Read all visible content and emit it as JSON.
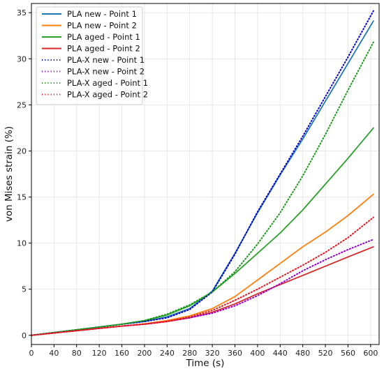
{
  "chart_data": {
    "type": "line",
    "title": "",
    "xlabel": "Time (s)",
    "ylabel": "von Mises strain (%)",
    "xlim": [
      0,
      615
    ],
    "ylim": [
      -1,
      36
    ],
    "xticks": [
      0,
      40,
      80,
      120,
      160,
      200,
      240,
      280,
      320,
      360,
      400,
      440,
      480,
      520,
      560,
      600
    ],
    "yticks": [
      0,
      5,
      10,
      15,
      20,
      25,
      30,
      35
    ],
    "grid": true,
    "legend_position": "top-left",
    "series": [
      {
        "name": "PLA new - Point 1",
        "color": "#1f77b4",
        "style": "solid",
        "x": [
          0,
          40,
          80,
          120,
          160,
          200,
          240,
          280,
          320,
          360,
          400,
          440,
          480,
          520,
          560,
          605
        ],
        "y": [
          0,
          0.3,
          0.6,
          0.9,
          1.2,
          1.5,
          2.0,
          2.9,
          4.8,
          8.9,
          13.3,
          17.4,
          21.3,
          25.4,
          29.5,
          34.1
        ]
      },
      {
        "name": "PLA new - Point 2",
        "color": "#ff7f0e",
        "style": "solid",
        "x": [
          0,
          40,
          80,
          120,
          160,
          200,
          240,
          280,
          320,
          360,
          400,
          440,
          480,
          520,
          560,
          605
        ],
        "y": [
          0,
          0.25,
          0.5,
          0.75,
          1.0,
          1.25,
          1.6,
          2.1,
          2.9,
          4.2,
          6.0,
          7.8,
          9.6,
          11.2,
          13.0,
          15.3
        ]
      },
      {
        "name": "PLA aged - Point 1",
        "color": "#2ca02c",
        "style": "solid",
        "x": [
          0,
          40,
          80,
          120,
          160,
          200,
          240,
          280,
          320,
          360,
          400,
          440,
          480,
          520,
          560,
          605
        ],
        "y": [
          0,
          0.3,
          0.6,
          0.9,
          1.2,
          1.6,
          2.2,
          3.2,
          4.7,
          6.7,
          8.9,
          11.1,
          13.6,
          16.4,
          19.2,
          22.5
        ]
      },
      {
        "name": "PLA aged - Point 2",
        "color": "#d62728",
        "style": "solid",
        "x": [
          0,
          40,
          80,
          120,
          160,
          200,
          240,
          280,
          320,
          360,
          400,
          440,
          480,
          520,
          560,
          605
        ],
        "y": [
          0,
          0.25,
          0.5,
          0.75,
          1.0,
          1.2,
          1.5,
          1.9,
          2.5,
          3.4,
          4.5,
          5.5,
          6.5,
          7.5,
          8.5,
          9.6
        ]
      },
      {
        "name": "PLA-X new - Point 1",
        "color": "#0000cc",
        "style": "dotted",
        "x": [
          0,
          40,
          80,
          120,
          160,
          200,
          240,
          280,
          320,
          360,
          400,
          440,
          480,
          520,
          560,
          605
        ],
        "y": [
          0,
          0.3,
          0.6,
          0.9,
          1.2,
          1.5,
          1.9,
          2.8,
          4.7,
          8.8,
          13.4,
          17.5,
          21.6,
          25.9,
          30.2,
          35.2
        ]
      },
      {
        "name": "PLA-X new - Point 2",
        "color": "#9400d3",
        "style": "dotted",
        "x": [
          0,
          40,
          80,
          120,
          160,
          200,
          240,
          280,
          320,
          360,
          400,
          440,
          480,
          520,
          560,
          605
        ],
        "y": [
          0,
          0.25,
          0.5,
          0.75,
          1.0,
          1.2,
          1.5,
          1.9,
          2.4,
          3.2,
          4.3,
          5.6,
          7.0,
          8.2,
          9.3,
          10.4
        ]
      },
      {
        "name": "PLA-X aged - Point 1",
        "color": "#1a9a1a",
        "style": "dotted",
        "x": [
          0,
          40,
          80,
          120,
          160,
          200,
          240,
          280,
          320,
          360,
          400,
          440,
          480,
          520,
          560,
          605
        ],
        "y": [
          0,
          0.3,
          0.6,
          0.9,
          1.2,
          1.6,
          2.3,
          3.3,
          4.7,
          6.9,
          9.9,
          13.3,
          17.3,
          21.8,
          26.6,
          31.8
        ]
      },
      {
        "name": "PLA-X aged - Point 2",
        "color": "#e8141e",
        "style": "dotted",
        "x": [
          0,
          40,
          80,
          120,
          160,
          200,
          240,
          280,
          320,
          360,
          400,
          440,
          480,
          520,
          560,
          605
        ],
        "y": [
          0,
          0.25,
          0.5,
          0.75,
          1.0,
          1.2,
          1.5,
          2.0,
          2.7,
          3.8,
          5.0,
          6.3,
          7.6,
          9.0,
          10.6,
          12.8
        ]
      }
    ]
  }
}
